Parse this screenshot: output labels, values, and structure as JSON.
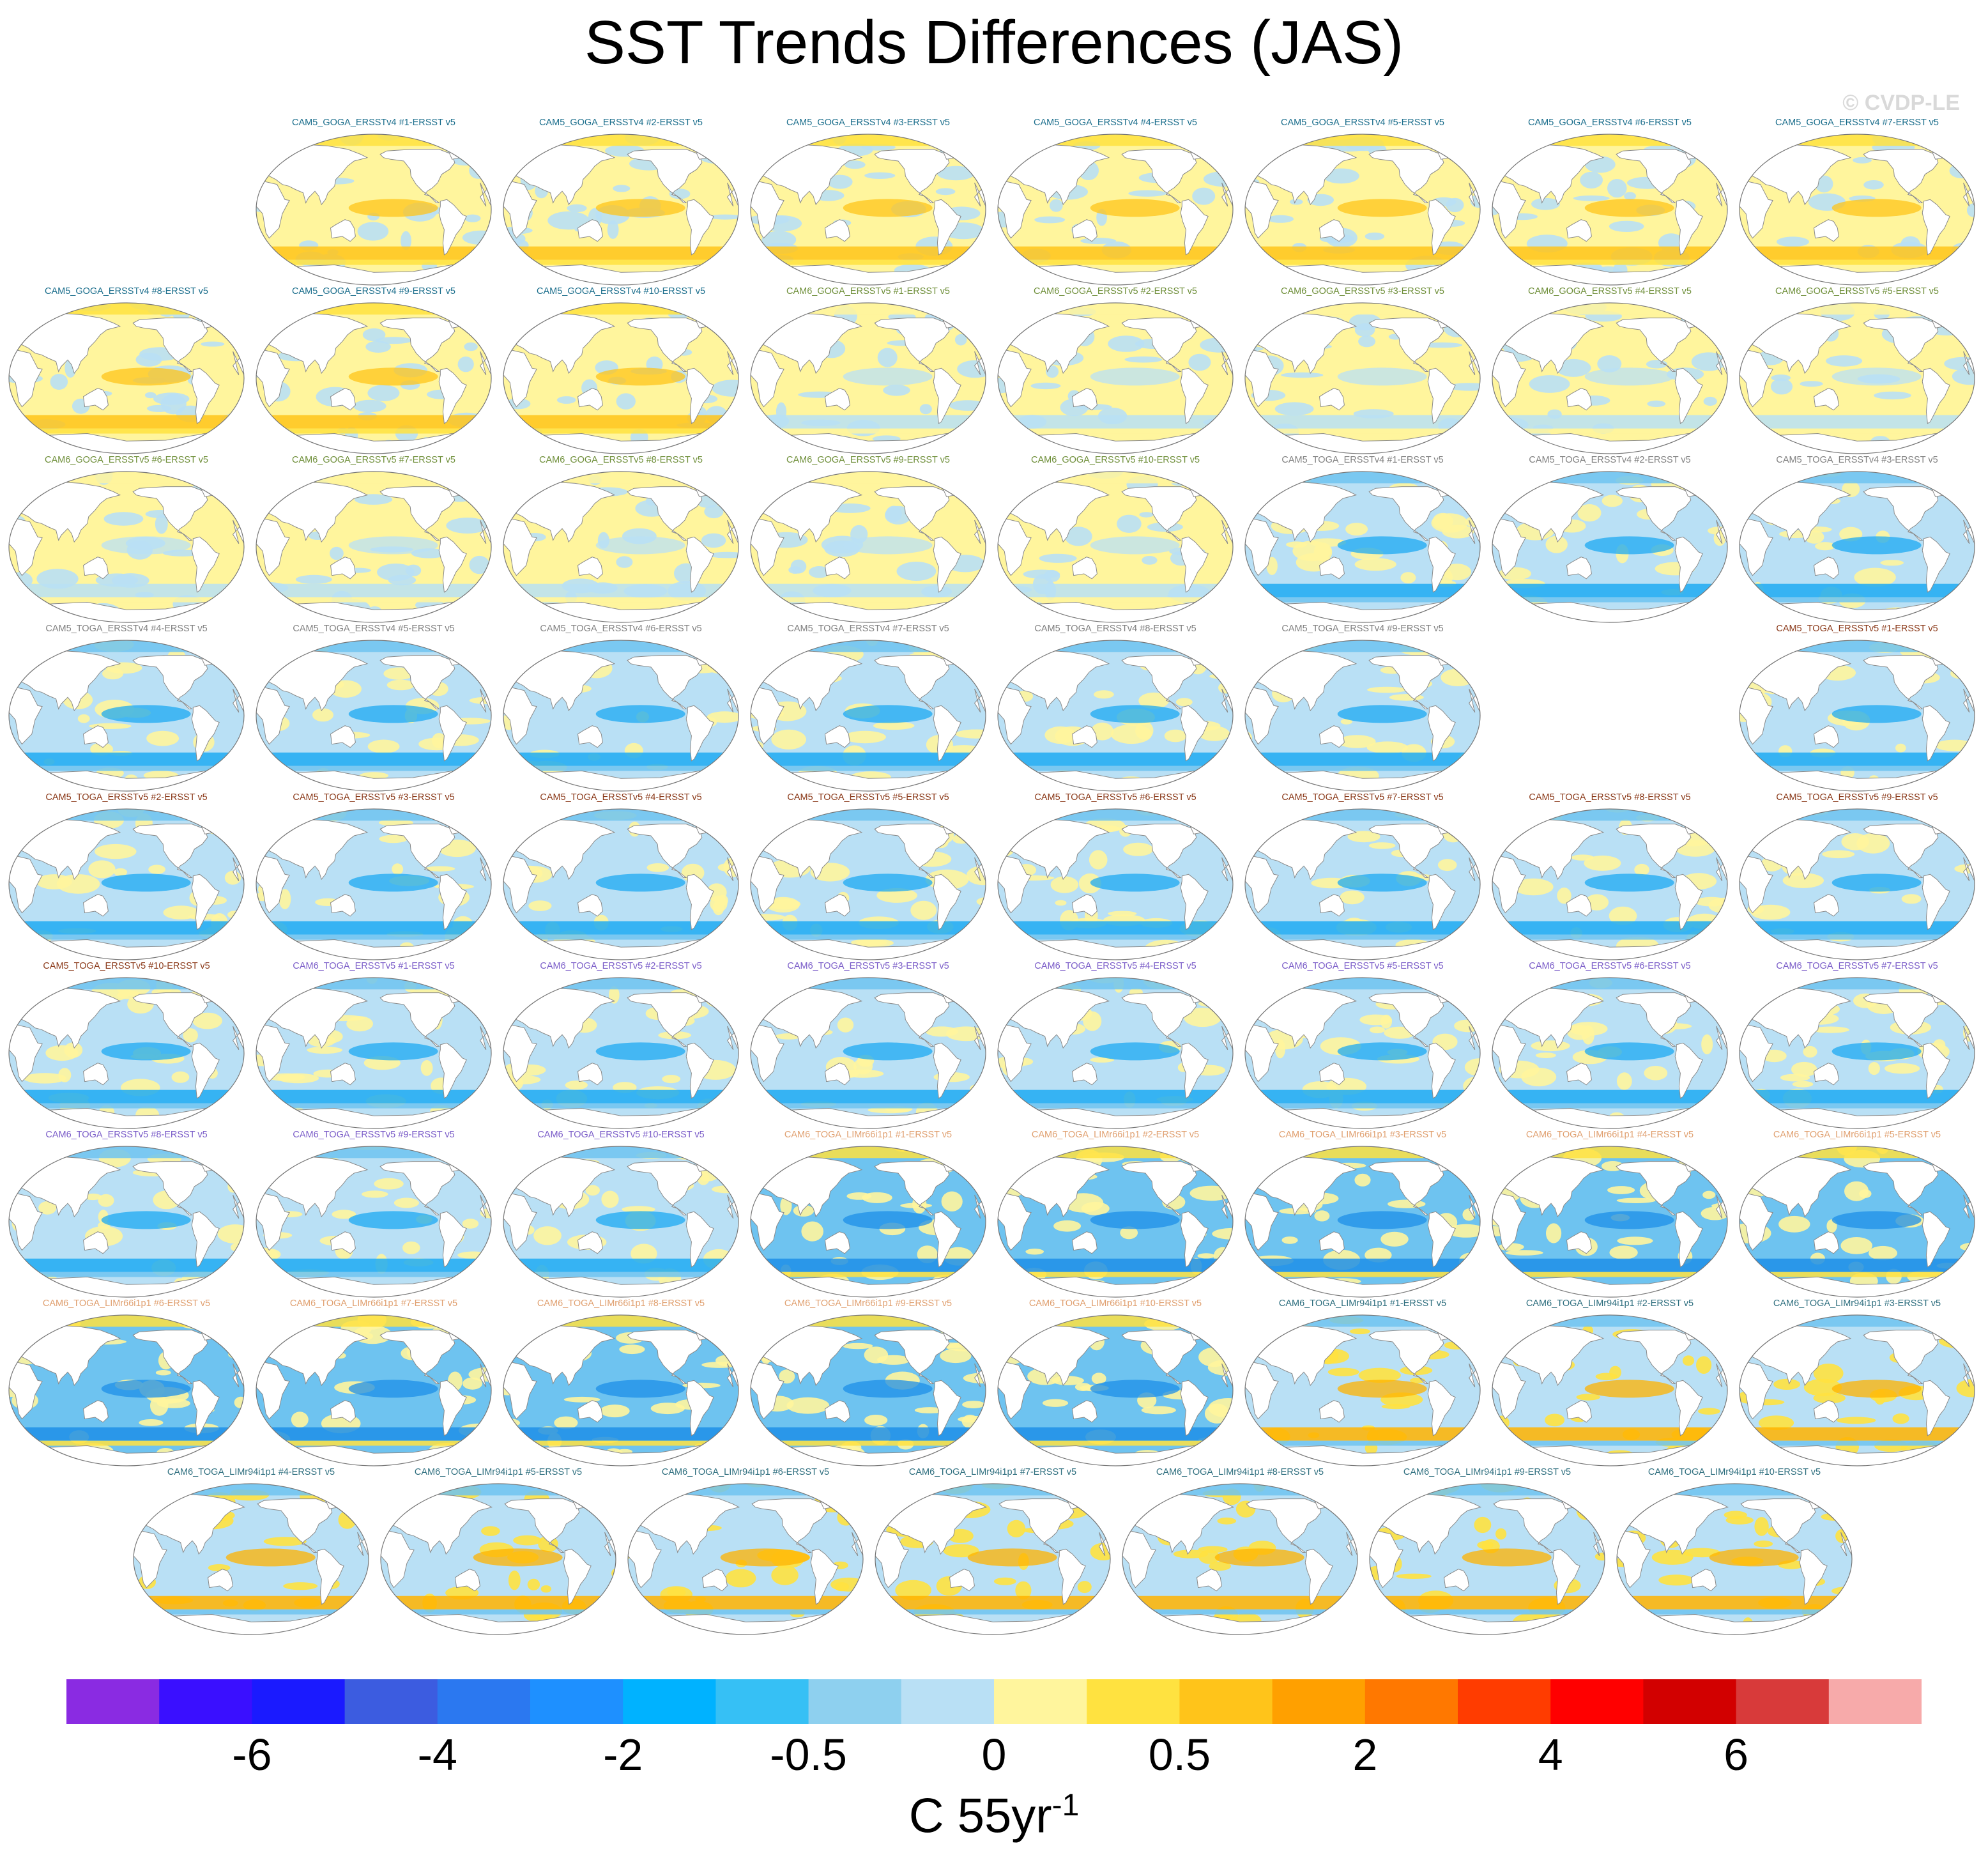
{
  "title": "SST Trends Differences (JAS)",
  "watermark": "© CVDP-LE",
  "panels": [
    {
      "label": "CAM5_GOGA_ERSSTv4 #1-ERSST v5",
      "group": "goga4"
    },
    {
      "label": "CAM5_GOGA_ERSSTv4 #2-ERSST v5",
      "group": "goga4"
    },
    {
      "label": "CAM5_GOGA_ERSSTv4 #3-ERSST v5",
      "group": "goga4"
    },
    {
      "label": "CAM5_GOGA_ERSSTv4 #4-ERSST v5",
      "group": "goga4"
    },
    {
      "label": "CAM5_GOGA_ERSSTv4 #5-ERSST v5",
      "group": "goga4"
    },
    {
      "label": "CAM5_GOGA_ERSSTv4 #6-ERSST v5",
      "group": "goga4"
    },
    {
      "label": "CAM5_GOGA_ERSSTv4 #7-ERSST v5",
      "group": "goga4"
    },
    {
      "label": "CAM5_GOGA_ERSSTv4 #8-ERSST v5",
      "group": "goga4"
    },
    {
      "label": "CAM5_GOGA_ERSSTv4 #9-ERSST v5",
      "group": "goga4"
    },
    {
      "label": "CAM5_GOGA_ERSSTv4 #10-ERSST v5",
      "group": "goga4"
    },
    {
      "label": "CAM6_GOGA_ERSSTv5 #1-ERSST v5",
      "group": "goga6"
    },
    {
      "label": "CAM6_GOGA_ERSSTv5 #2-ERSST v5",
      "group": "goga6"
    },
    {
      "label": "CAM6_GOGA_ERSSTv5 #3-ERSST v5",
      "group": "goga6"
    },
    {
      "label": "CAM6_GOGA_ERSSTv5 #4-ERSST v5",
      "group": "goga6"
    },
    {
      "label": "CAM6_GOGA_ERSSTv5 #5-ERSST v5",
      "group": "goga6"
    },
    {
      "label": "CAM6_GOGA_ERSSTv5 #6-ERSST v5",
      "group": "goga6"
    },
    {
      "label": "CAM6_GOGA_ERSSTv5 #7-ERSST v5",
      "group": "goga6"
    },
    {
      "label": "CAM6_GOGA_ERSSTv5 #8-ERSST v5",
      "group": "goga6"
    },
    {
      "label": "CAM6_GOGA_ERSSTv5 #9-ERSST v5",
      "group": "goga6"
    },
    {
      "label": "CAM6_GOGA_ERSSTv5 #10-ERSST v5",
      "group": "goga6"
    },
    {
      "label": "CAM5_TOGA_ERSSTv4 #1-ERSST v5",
      "group": "toga4"
    },
    {
      "label": "CAM5_TOGA_ERSSTv4 #2-ERSST v5",
      "group": "toga4"
    },
    {
      "label": "CAM5_TOGA_ERSSTv4 #3-ERSST v5",
      "group": "toga4"
    },
    {
      "label": "CAM5_TOGA_ERSSTv4 #4-ERSST v5",
      "group": "toga4"
    },
    {
      "label": "CAM5_TOGA_ERSSTv4 #5-ERSST v5",
      "group": "toga4"
    },
    {
      "label": "CAM5_TOGA_ERSSTv4 #6-ERSST v5",
      "group": "toga4"
    },
    {
      "label": "CAM5_TOGA_ERSSTv4 #7-ERSST v5",
      "group": "toga4"
    },
    {
      "label": "CAM5_TOGA_ERSSTv4 #8-ERSST v5",
      "group": "toga4"
    },
    {
      "label": "CAM5_TOGA_ERSSTv4 #9-ERSST v5",
      "group": "toga4"
    },
    {
      "label": "CAM5_TOGA_ERSSTv5 #1-ERSST v5",
      "group": "toga5"
    },
    {
      "label": "CAM5_TOGA_ERSSTv5 #2-ERSST v5",
      "group": "toga5"
    },
    {
      "label": "CAM5_TOGA_ERSSTv5 #3-ERSST v5",
      "group": "toga5"
    },
    {
      "label": "CAM5_TOGA_ERSSTv5 #4-ERSST v5",
      "group": "toga5"
    },
    {
      "label": "CAM5_TOGA_ERSSTv5 #5-ERSST v5",
      "group": "toga5"
    },
    {
      "label": "CAM5_TOGA_ERSSTv5 #6-ERSST v5",
      "group": "toga5"
    },
    {
      "label": "CAM5_TOGA_ERSSTv5 #7-ERSST v5",
      "group": "toga5"
    },
    {
      "label": "CAM5_TOGA_ERSSTv5 #8-ERSST v5",
      "group": "toga5"
    },
    {
      "label": "CAM5_TOGA_ERSSTv5 #9-ERSST v5",
      "group": "toga5"
    },
    {
      "label": "CAM5_TOGA_ERSSTv5 #10-ERSST v5",
      "group": "toga5"
    },
    {
      "label": "CAM6_TOGA_ERSSTv5 #1-ERSST v5",
      "group": "toga6"
    },
    {
      "label": "CAM6_TOGA_ERSSTv5 #2-ERSST v5",
      "group": "toga6"
    },
    {
      "label": "CAM6_TOGA_ERSSTv5 #3-ERSST v5",
      "group": "toga6"
    },
    {
      "label": "CAM6_TOGA_ERSSTv5 #4-ERSST v5",
      "group": "toga6"
    },
    {
      "label": "CAM6_TOGA_ERSSTv5 #5-ERSST v5",
      "group": "toga6"
    },
    {
      "label": "CAM6_TOGA_ERSSTv5 #6-ERSST v5",
      "group": "toga6"
    },
    {
      "label": "CAM6_TOGA_ERSSTv5 #7-ERSST v5",
      "group": "toga6"
    },
    {
      "label": "CAM6_TOGA_ERSSTv5 #8-ERSST v5",
      "group": "toga6"
    },
    {
      "label": "CAM6_TOGA_ERSSTv5 #9-ERSST v5",
      "group": "toga6"
    },
    {
      "label": "CAM6_TOGA_ERSSTv5 #10-ERSST v5",
      "group": "toga6"
    },
    {
      "label": "CAM6_TOGA_LIMr66i1p1 #1-ERSST v5",
      "group": "lim66"
    },
    {
      "label": "CAM6_TOGA_LIMr66i1p1 #2-ERSST v5",
      "group": "lim66"
    },
    {
      "label": "CAM6_TOGA_LIMr66i1p1 #3-ERSST v5",
      "group": "lim66"
    },
    {
      "label": "CAM6_TOGA_LIMr66i1p1 #4-ERSST v5",
      "group": "lim66"
    },
    {
      "label": "CAM6_TOGA_LIMr66i1p1 #5-ERSST v5",
      "group": "lim66"
    },
    {
      "label": "CAM6_TOGA_LIMr66i1p1 #6-ERSST v5",
      "group": "lim66"
    },
    {
      "label": "CAM6_TOGA_LIMr66i1p1 #7-ERSST v5",
      "group": "lim66"
    },
    {
      "label": "CAM6_TOGA_LIMr66i1p1 #8-ERSST v5",
      "group": "lim66"
    },
    {
      "label": "CAM6_TOGA_LIMr66i1p1 #9-ERSST v5",
      "group": "lim66"
    },
    {
      "label": "CAM6_TOGA_LIMr66i1p1 #10-ERSST v5",
      "group": "lim66"
    },
    {
      "label": "CAM6_TOGA_LIMr94i1p1 #1-ERSST v5",
      "group": "lim94"
    },
    {
      "label": "CAM6_TOGA_LIMr94i1p1 #2-ERSST v5",
      "group": "lim94"
    },
    {
      "label": "CAM6_TOGA_LIMr94i1p1 #3-ERSST v5",
      "group": "lim94"
    },
    {
      "label": "CAM6_TOGA_LIMr94i1p1 #4-ERSST v5",
      "group": "lim94"
    },
    {
      "label": "CAM6_TOGA_LIMr94i1p1 #5-ERSST v5",
      "group": "lim94"
    },
    {
      "label": "CAM6_TOGA_LIMr94i1p1 #6-ERSST v5",
      "group": "lim94"
    },
    {
      "label": "CAM6_TOGA_LIMr94i1p1 #7-ERSST v5",
      "group": "lim94"
    },
    {
      "label": "CAM6_TOGA_LIMr94i1p1 #8-ERSST v5",
      "group": "lim94"
    },
    {
      "label": "CAM6_TOGA_LIMr94i1p1 #9-ERSST v5",
      "group": "lim94"
    },
    {
      "label": "CAM6_TOGA_LIMr94i1p1 #10-ERSST v5",
      "group": "lim94"
    }
  ],
  "group_label_colors": {
    "goga4": "#1b6e8c",
    "goga6": "#6f8f3a",
    "toga4": "#808080",
    "toga5": "#8b3a1a",
    "toga6": "#7a5cc8",
    "lim66": "#e0a070",
    "lim94": "#2f6f7f"
  },
  "map_palettes": {
    "goga4": {
      "ocean": "#fff59d",
      "patch": "#b9e0f5",
      "band": "#ffc41a",
      "band2": "#ffe240"
    },
    "goga6": {
      "ocean": "#fff59d",
      "patch": "#b9e0f5",
      "band": "#b9e0f5",
      "band2": "#fff59d"
    },
    "toga4": {
      "ocean": "#b9e0f5",
      "patch": "#fff59d",
      "band": "#1eaaf2",
      "band2": "#6ec3f0"
    },
    "toga5": {
      "ocean": "#b9e0f5",
      "patch": "#fff59d",
      "band": "#1eaaf2",
      "band2": "#6ec3f0"
    },
    "toga6": {
      "ocean": "#b9e0f5",
      "patch": "#fff59d",
      "band": "#1eaaf2",
      "band2": "#6ec3f0"
    },
    "lim66": {
      "ocean": "#6ec3f0",
      "patch": "#fff59d",
      "band": "#1e8fe8",
      "band2": "#ffe240"
    },
    "lim94": {
      "ocean": "#b9e0f5",
      "patch": "#ffe240",
      "band": "#ffb300",
      "band2": "#6ec3f0"
    }
  },
  "colorbar": {
    "colors": [
      "#8a2be2",
      "#3a0fff",
      "#1a1aff",
      "#3c5ce0",
      "#2b78f0",
      "#1e90ff",
      "#00b2ff",
      "#36c0f5",
      "#8ed0ef",
      "#b9e0f5",
      "#fff59d",
      "#ffe240",
      "#ffc41a",
      "#ffa000",
      "#ff7800",
      "#ff3c00",
      "#ff0000",
      "#d20000",
      "#d83a3a",
      "#f7aaaa"
    ],
    "tick_labels": [
      "-6",
      "-4",
      "-2",
      "-0.5",
      "0",
      "0.5",
      "2",
      "4",
      "6"
    ],
    "tick_boundary_index": [
      2,
      4,
      6,
      8,
      10,
      12,
      14,
      16,
      18
    ],
    "units_base": "C 55yr",
    "units_exp": "-1"
  }
}
